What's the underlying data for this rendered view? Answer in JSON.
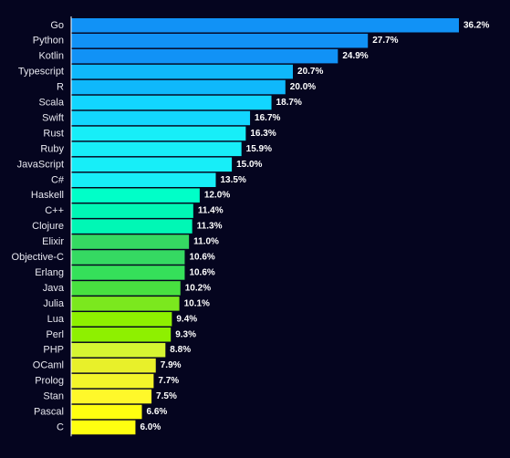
{
  "chart_data": {
    "type": "bar",
    "orientation": "horizontal",
    "title": "",
    "xlabel": "",
    "ylabel": "",
    "xlim": [
      0,
      36.2
    ],
    "grid": false,
    "legend": "none",
    "value_suffix": "%",
    "categories": [
      "Go",
      "Python",
      "Kotlin",
      "Typescript",
      "R",
      "Scala",
      "Swift",
      "Rust",
      "Ruby",
      "JavaScript",
      "C#",
      "Haskell",
      "C++",
      "Clojure",
      "Elixir",
      "Objective-C",
      "Erlang",
      "Java",
      "Julia",
      "Lua",
      "Perl",
      "PHP",
      "OCaml",
      "Prolog",
      "Stan",
      "Pascal",
      "C"
    ],
    "values": [
      36.2,
      27.7,
      24.9,
      20.7,
      20.0,
      18.7,
      16.7,
      16.3,
      15.9,
      15.0,
      13.5,
      12.0,
      11.4,
      11.3,
      11.0,
      10.6,
      10.6,
      10.2,
      10.1,
      9.4,
      9.3,
      8.8,
      7.9,
      7.7,
      7.5,
      6.6,
      6.0
    ],
    "value_labels": [
      "36.2%",
      "27.7%",
      "24.9%",
      "20.7%",
      "20.0%",
      "18.7%",
      "16.7%",
      "16.3%",
      "15.9%",
      "15.0%",
      "13.5%",
      "12.0%",
      "11.4%",
      "11.3%",
      "11.0%",
      "10.6%",
      "10.6%",
      "10.2%",
      "10.1%",
      "9.4%",
      "9.3%",
      "8.8%",
      "7.9%",
      "7.7%",
      "7.5%",
      "6.6%",
      "6.0%"
    ],
    "colors": [
      "#1192f6",
      "#1192f6",
      "#1192f6",
      "#0fb8fb",
      "#0fb8fb",
      "#12d6ff",
      "#12d6ff",
      "#17eef8",
      "#17eef8",
      "#17eef8",
      "#17eef8",
      "#00ffc8",
      "#00f7b5",
      "#00f7b5",
      "#35d962",
      "#35d962",
      "#35e05a",
      "#48e040",
      "#7be81e",
      "#8ef000",
      "#8ef000",
      "#d6f532",
      "#e8f02a",
      "#f3f52a",
      "#fff82a",
      "#ffff10",
      "#ffff10"
    ]
  },
  "style": {
    "background": "#05051f",
    "axis_color": "#ffffff"
  }
}
